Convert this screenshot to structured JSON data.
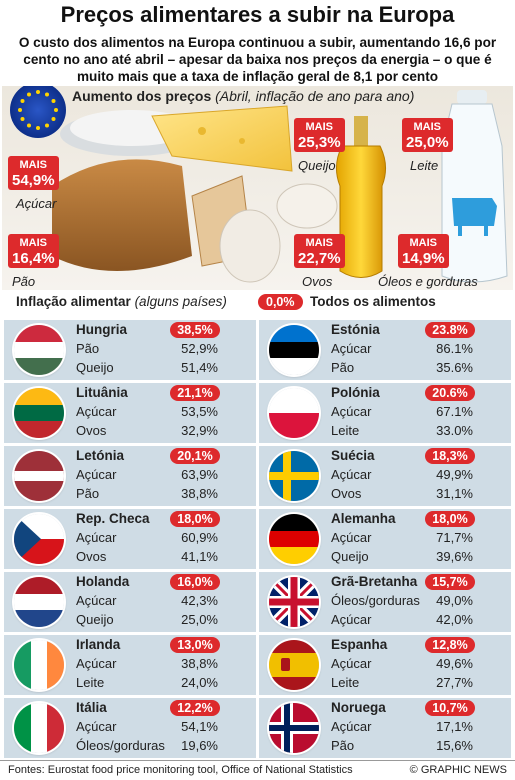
{
  "header": {
    "title": "Preços alimentares a subir na Europa",
    "subtitle": "O custo dos alimentos na Europa continuou a subir, aumentando 16,6 por cento no ano até abril – apesar da baixa nos preços da energia – o que é muito mais que a taxa de inflação geral de 8,1 por cento"
  },
  "photo": {
    "heading_bold": "Aumento dos preços",
    "heading_italic": "(Abril, inflação de ano para ano)",
    "mais": "MAIS"
  },
  "chart_data": [
    {
      "type": "bar",
      "title": "Aumento dos preços",
      "subtitle": "(Abril, inflação de ano para ano)",
      "categories": [
        "Açúcar",
        "Pão",
        "Queijo",
        "Ovos",
        "Leite",
        "Óleos e gorduras"
      ],
      "values_text": [
        "54,9%",
        "16,4%",
        "25,3%",
        "22,7%",
        "25,0%",
        "14,9%"
      ],
      "values": [
        54.9,
        16.4,
        25.3,
        22.7,
        25.0,
        14.9
      ]
    },
    {
      "type": "table",
      "title": "Inflação alimentar",
      "subtitle": "(alguns países)",
      "legend_label": "Todos os alimentos",
      "legend_pill": "0,0%",
      "countries": [
        {
          "name": "Hungria",
          "total": "38,5%",
          "items": [
            {
              "label": "Pão",
              "value": "52,9%"
            },
            {
              "label": "Queijo",
              "value": "51,4%"
            }
          ],
          "flag": "hungary"
        },
        {
          "name": "Lituânia",
          "total": "21,1%",
          "items": [
            {
              "label": "Açúcar",
              "value": "53,5%"
            },
            {
              "label": "Ovos",
              "value": "32,9%"
            }
          ],
          "flag": "lithuania"
        },
        {
          "name": "Letónia",
          "total": "20,1%",
          "items": [
            {
              "label": "Açúcar",
              "value": "63,9%"
            },
            {
              "label": "Pão",
              "value": "38,8%"
            }
          ],
          "flag": "latvia"
        },
        {
          "name": "Rep. Checa",
          "total": "18,0%",
          "items": [
            {
              "label": "Açúcar",
              "value": "60,9%"
            },
            {
              "label": "Ovos",
              "value": "41,1%"
            }
          ],
          "flag": "czech"
        },
        {
          "name": "Holanda",
          "total": "16,0%",
          "items": [
            {
              "label": "Açúcar",
              "value": "42,3%"
            },
            {
              "label": "Queijo",
              "value": "25,0%"
            }
          ],
          "flag": "netherlands"
        },
        {
          "name": "Irlanda",
          "total": "13,0%",
          "items": [
            {
              "label": "Açúcar",
              "value": "38,8%"
            },
            {
              "label": "Leite",
              "value": "24,0%"
            }
          ],
          "flag": "ireland"
        },
        {
          "name": "Itália",
          "total": "12,2%",
          "items": [
            {
              "label": "Açúcar",
              "value": "54,1%"
            },
            {
              "label": "Óleos/gorduras",
              "value": "19,6%"
            }
          ],
          "flag": "italy"
        },
        {
          "name": "Estónia",
          "total": "23.8%",
          "items": [
            {
              "label": "Açúcar",
              "value": "86.1%"
            },
            {
              "label": "Pão",
              "value": "35.6%"
            }
          ],
          "flag": "estonia"
        },
        {
          "name": "Polónia",
          "total": "20.6%",
          "items": [
            {
              "label": "Açúcar",
              "value": "67.1%"
            },
            {
              "label": "Leite",
              "value": "33.0%"
            }
          ],
          "flag": "poland"
        },
        {
          "name": "Suécia",
          "total": "18,3%",
          "items": [
            {
              "label": "Açúcar",
              "value": "49,9%"
            },
            {
              "label": "Ovos",
              "value": "31,1%"
            }
          ],
          "flag": "sweden"
        },
        {
          "name": "Alemanha",
          "total": "18,0%",
          "items": [
            {
              "label": "Açúcar",
              "value": "71,7%"
            },
            {
              "label": "Queijo",
              "value": "39,6%"
            }
          ],
          "flag": "germany"
        },
        {
          "name": "Grã-Bretanha",
          "total": "15,7%",
          "items": [
            {
              "label": "Óleos/gorduras",
              "value": "49,0%"
            },
            {
              "label": "Açúcar",
              "value": "42,0%"
            }
          ],
          "flag": "uk"
        },
        {
          "name": "Espanha",
          "total": "12,8%",
          "items": [
            {
              "label": "Açúcar",
              "value": "49,6%"
            },
            {
              "label": "Leite",
              "value": "27,7%"
            }
          ],
          "flag": "spain"
        },
        {
          "name": "Noruega",
          "total": "10,7%",
          "items": [
            {
              "label": "Açúcar",
              "value": "17,1%"
            },
            {
              "label": "Pão",
              "value": "15,6%"
            }
          ],
          "flag": "norway"
        }
      ]
    }
  ],
  "footer": {
    "sources": "Fontes: Eurostat food price monitoring tool, Office of National Statistics",
    "credit": "© GRAPHIC NEWS"
  },
  "colors": {
    "accent_red": "#dd2a2c",
    "card_bg": "#cfdce5"
  }
}
